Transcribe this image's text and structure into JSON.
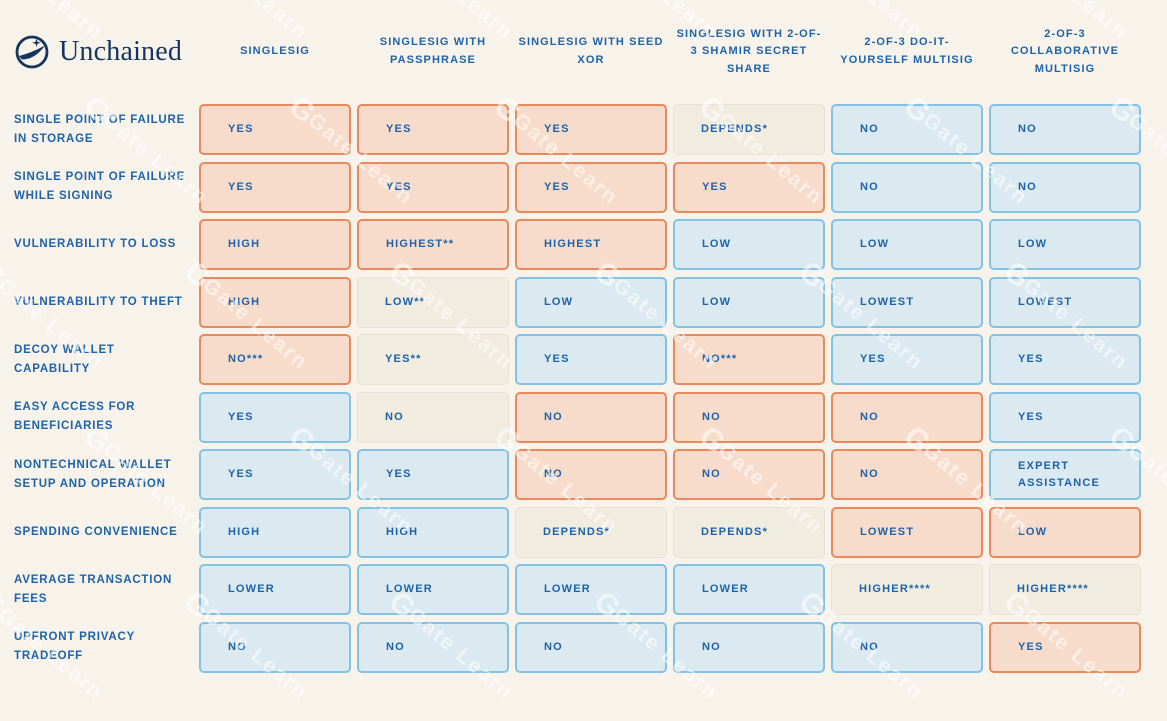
{
  "brand": {
    "name": "Unchained"
  },
  "watermark": {
    "logo_letter": "G",
    "text": "Gate Learn"
  },
  "colors": {
    "background": "#F7F3EB",
    "navy": "#16355E",
    "blue_text": "#1E63A9",
    "negative_fill": "#F8DCCB",
    "negative_border": "#E9895C",
    "positive_fill": "#DBE9F0",
    "positive_border": "#82C3E5",
    "neutral_fill": "#F0ECE0",
    "neutral_border": "#E6E1D2"
  },
  "chart_data": {
    "type": "table",
    "title": "Wallet configuration comparison",
    "columns": [
      "SINGLESIG",
      "SINGLESIG WITH PASSPHRASE",
      "SINGLESIG WITH SEED XOR",
      "SINGLESIG WITH 2-OF-3 SHAMIR SECRET SHARE",
      "2-OF-3 DO-IT-YOURSELF MULTISIG",
      "2-OF-3 COLLABORATIVE MULTISIG"
    ],
    "row_labels": [
      "SINGLE POINT OF FAILURE IN STORAGE",
      "SINGLE POINT OF FAILURE WHILE SIGNING",
      "VULNERABILITY TO LOSS",
      "VULNERABILITY TO THEFT",
      "DECOY WALLET CAPABILITY",
      "EASY ACCESS FOR BENEFICIARIES",
      "NONTECHNICAL WALLET SETUP AND OPERATION",
      "SPENDING CONVENIENCE",
      "AVERAGE TRANSACTION FEES",
      "UPFRONT PRIVACY TRADEOFF"
    ],
    "tone_legend": {
      "negative": "orange cell (drawback)",
      "positive": "blue cell (benefit)",
      "neutral": "beige cell (depends / mixed)"
    },
    "cells": [
      [
        {
          "text": "YES",
          "tone": "negative"
        },
        {
          "text": "YES",
          "tone": "negative"
        },
        {
          "text": "YES",
          "tone": "negative"
        },
        {
          "text": "DEPENDS*",
          "tone": "neutral"
        },
        {
          "text": "NO",
          "tone": "positive"
        },
        {
          "text": "NO",
          "tone": "positive"
        }
      ],
      [
        {
          "text": "YES",
          "tone": "negative"
        },
        {
          "text": "YES",
          "tone": "negative"
        },
        {
          "text": "YES",
          "tone": "negative"
        },
        {
          "text": "YES",
          "tone": "negative"
        },
        {
          "text": "NO",
          "tone": "positive"
        },
        {
          "text": "NO",
          "tone": "positive"
        }
      ],
      [
        {
          "text": "HIGH",
          "tone": "negative"
        },
        {
          "text": "HIGHEST**",
          "tone": "negative"
        },
        {
          "text": "HIGHEST",
          "tone": "negative"
        },
        {
          "text": "LOW",
          "tone": "positive"
        },
        {
          "text": "LOW",
          "tone": "positive"
        },
        {
          "text": "LOW",
          "tone": "positive"
        }
      ],
      [
        {
          "text": "HIGH",
          "tone": "negative"
        },
        {
          "text": "LOW**",
          "tone": "neutral"
        },
        {
          "text": "LOW",
          "tone": "positive"
        },
        {
          "text": "LOW",
          "tone": "positive"
        },
        {
          "text": "LOWEST",
          "tone": "positive"
        },
        {
          "text": "LOWEST",
          "tone": "positive"
        }
      ],
      [
        {
          "text": "NO***",
          "tone": "negative"
        },
        {
          "text": "YES**",
          "tone": "neutral"
        },
        {
          "text": "YES",
          "tone": "positive"
        },
        {
          "text": "NO***",
          "tone": "negative"
        },
        {
          "text": "YES",
          "tone": "positive"
        },
        {
          "text": "YES",
          "tone": "positive"
        }
      ],
      [
        {
          "text": "YES",
          "tone": "positive"
        },
        {
          "text": "NO",
          "tone": "neutral"
        },
        {
          "text": "NO",
          "tone": "negative"
        },
        {
          "text": "NO",
          "tone": "negative"
        },
        {
          "text": "NO",
          "tone": "negative"
        },
        {
          "text": "YES",
          "tone": "positive"
        }
      ],
      [
        {
          "text": "YES",
          "tone": "positive"
        },
        {
          "text": "YES",
          "tone": "positive"
        },
        {
          "text": "NO",
          "tone": "negative"
        },
        {
          "text": "NO",
          "tone": "negative"
        },
        {
          "text": "NO",
          "tone": "negative"
        },
        {
          "text": "EXPERT ASSISTANCE",
          "tone": "positive"
        }
      ],
      [
        {
          "text": "HIGH",
          "tone": "positive"
        },
        {
          "text": "HIGH",
          "tone": "positive"
        },
        {
          "text": "DEPENDS*",
          "tone": "neutral"
        },
        {
          "text": "DEPENDS*",
          "tone": "neutral"
        },
        {
          "text": "LOWEST",
          "tone": "negative"
        },
        {
          "text": "LOW",
          "tone": "negative"
        }
      ],
      [
        {
          "text": "LOWER",
          "tone": "positive"
        },
        {
          "text": "LOWER",
          "tone": "positive"
        },
        {
          "text": "LOWER",
          "tone": "positive"
        },
        {
          "text": "LOWER",
          "tone": "positive"
        },
        {
          "text": "HIGHER****",
          "tone": "neutral"
        },
        {
          "text": "HIGHER****",
          "tone": "neutral"
        }
      ],
      [
        {
          "text": "NO",
          "tone": "positive"
        },
        {
          "text": "NO",
          "tone": "positive"
        },
        {
          "text": "NO",
          "tone": "positive"
        },
        {
          "text": "NO",
          "tone": "positive"
        },
        {
          "text": "NO",
          "tone": "positive"
        },
        {
          "text": "YES",
          "tone": "negative"
        }
      ]
    ]
  }
}
